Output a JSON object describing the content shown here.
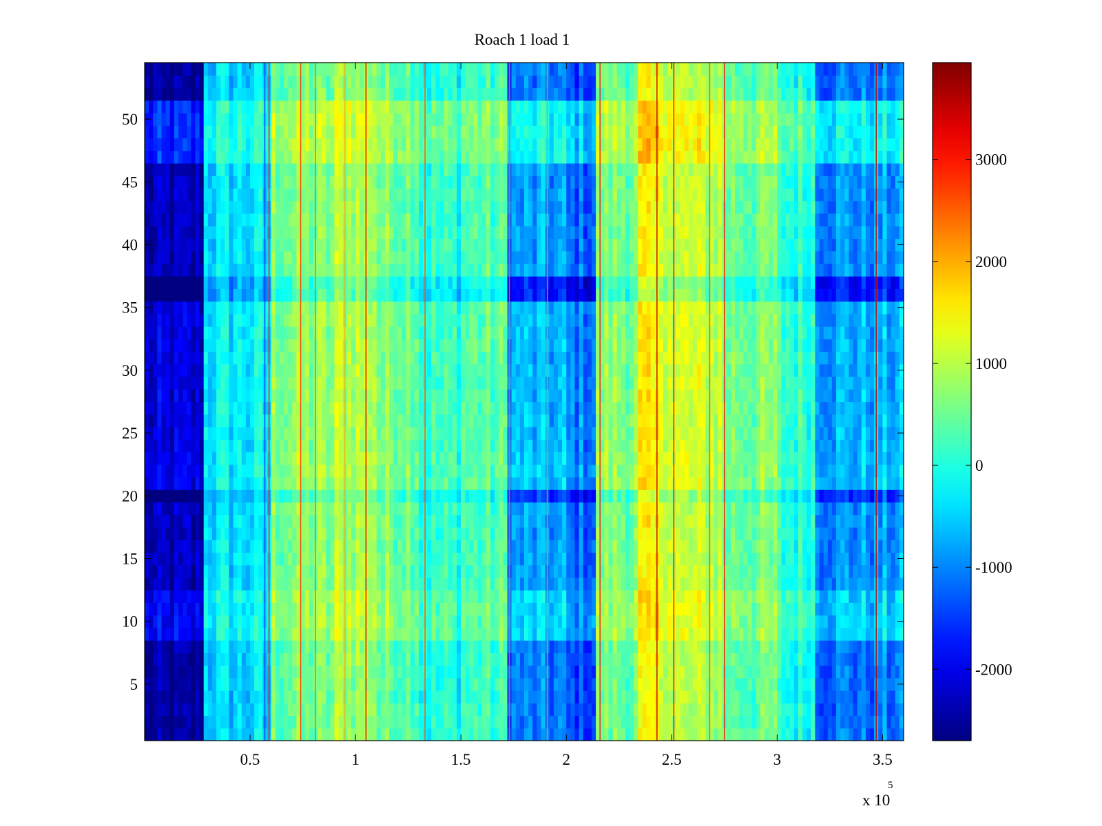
{
  "chart_data": {
    "type": "heatmap",
    "title": "Roach 1 load 1",
    "xlabel": "",
    "ylabel": "",
    "colormap": "jet",
    "x_range": [
      0,
      360000
    ],
    "y_range": [
      0.5,
      54.5
    ],
    "rows": 54,
    "x_ticks": [
      50000,
      100000,
      150000,
      200000,
      250000,
      300000,
      350000
    ],
    "x_tick_labels": [
      "0.5",
      "1",
      "1.5",
      "2",
      "2.5",
      "3",
      "3.5"
    ],
    "x_exponent_prefix": "x 10",
    "x_exponent_power": "5",
    "y_ticks": [
      5,
      10,
      15,
      20,
      25,
      30,
      35,
      40,
      45,
      50
    ],
    "y_tick_labels": [
      "5",
      "10",
      "15",
      "20",
      "25",
      "30",
      "35",
      "40",
      "45",
      "50"
    ],
    "colorbar": {
      "range": [
        -2700,
        3950
      ],
      "ticks": [
        -2000,
        -1000,
        0,
        1000,
        2000,
        3000
      ],
      "tick_labels": [
        "-2000",
        "-1000",
        "0",
        "1000",
        "2000",
        "3000"
      ]
    },
    "column_profile": [
      {
        "x_start": 0,
        "x_end": 28000,
        "value": -2200
      },
      {
        "x_start": 28000,
        "x_end": 60000,
        "value": -300
      },
      {
        "x_start": 60000,
        "x_end": 90000,
        "value": 700
      },
      {
        "x_start": 90000,
        "x_end": 110000,
        "value": 1000
      },
      {
        "x_start": 110000,
        "x_end": 130000,
        "value": 650
      },
      {
        "x_start": 130000,
        "x_end": 150000,
        "value": 150
      },
      {
        "x_start": 150000,
        "x_end": 172000,
        "value": 350
      },
      {
        "x_start": 172000,
        "x_end": 200000,
        "value": -700
      },
      {
        "x_start": 200000,
        "x_end": 215000,
        "value": -1000
      },
      {
        "x_start": 215000,
        "x_end": 235000,
        "value": 700
      },
      {
        "x_start": 235000,
        "x_end": 250000,
        "value": 1400
      },
      {
        "x_start": 250000,
        "x_end": 275000,
        "value": 1100
      },
      {
        "x_start": 275000,
        "x_end": 300000,
        "value": 600
      },
      {
        "x_start": 300000,
        "x_end": 318000,
        "value": 150
      },
      {
        "x_start": 318000,
        "x_end": 360000,
        "value": -700
      }
    ],
    "row_bands": [
      {
        "y_start": 0.5,
        "y_end": 8.5,
        "offset": -200
      },
      {
        "y_start": 8.5,
        "y_end": 12.5,
        "offset": 100
      },
      {
        "y_start": 12.5,
        "y_end": 19.5,
        "offset": -100
      },
      {
        "y_start": 19.5,
        "y_end": 20.5,
        "offset": -400
      },
      {
        "y_start": 20.5,
        "y_end": 23.5,
        "offset": 50
      },
      {
        "y_start": 23.5,
        "y_end": 35.5,
        "offset": 0
      },
      {
        "y_start": 35.5,
        "y_end": 37.5,
        "offset": -500
      },
      {
        "y_start": 37.5,
        "y_end": 46.5,
        "offset": -100
      },
      {
        "y_start": 46.5,
        "y_end": 51.5,
        "offset": 250
      },
      {
        "y_start": 51.5,
        "y_end": 54.5,
        "offset": -200
      }
    ],
    "streaks": [
      {
        "x": 57000,
        "value": -1500
      },
      {
        "x": 59000,
        "value": 3000
      },
      {
        "x": 74000,
        "value": 2800
      },
      {
        "x": 81000,
        "value": 2500
      },
      {
        "x": 95000,
        "value": 2000
      },
      {
        "x": 105000,
        "value": 3500
      },
      {
        "x": 133000,
        "value": 2600
      },
      {
        "x": 173000,
        "value": 2400
      },
      {
        "x": 191000,
        "value": 2200
      },
      {
        "x": 216000,
        "value": 3000
      },
      {
        "x": 243000,
        "value": 3600
      },
      {
        "x": 251000,
        "value": 3200
      },
      {
        "x": 268000,
        "value": 2600
      },
      {
        "x": 275000,
        "value": 3000
      },
      {
        "x": 347000,
        "value": 3500
      }
    ]
  }
}
